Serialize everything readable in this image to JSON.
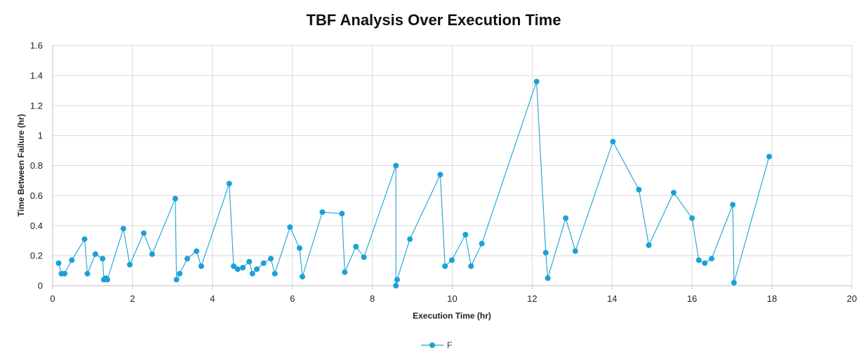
{
  "chart_data": {
    "type": "line",
    "title": "TBF Analysis Over Execution Time",
    "xlabel": "Execution Time (hr)",
    "ylabel": "Time Between Failure (hr)",
    "xlim": [
      0,
      20
    ],
    "ylim": [
      0,
      1.6
    ],
    "xticks": [
      0,
      2,
      4,
      6,
      8,
      10,
      12,
      14,
      16,
      18,
      20
    ],
    "yticks": [
      0,
      0.2,
      0.4,
      0.6,
      0.8,
      1,
      1.2,
      1.4,
      1.6
    ],
    "xtick_labels": [
      "0",
      "2",
      "4",
      "6",
      "8",
      "10",
      "12",
      "14",
      "16",
      "18",
      "20"
    ],
    "ytick_labels": [
      "0",
      "0.2",
      "0.4",
      "0.6",
      "0.8",
      "1",
      "1.2",
      "1.4",
      "1.6"
    ],
    "grid": true,
    "legend_position": "bottom",
    "series_color": "#1ba1d8",
    "series": [
      {
        "name": "F",
        "points": [
          [
            0.15,
            0.15
          ],
          [
            0.22,
            0.08
          ],
          [
            0.3,
            0.08
          ],
          [
            0.48,
            0.17
          ],
          [
            0.8,
            0.31
          ],
          [
            0.87,
            0.08
          ],
          [
            1.07,
            0.21
          ],
          [
            1.25,
            0.18
          ],
          [
            1.28,
            0.04
          ],
          [
            1.33,
            0.05
          ],
          [
            1.37,
            0.04
          ],
          [
            1.77,
            0.38
          ],
          [
            1.93,
            0.14
          ],
          [
            2.28,
            0.35
          ],
          [
            2.49,
            0.21
          ],
          [
            3.07,
            0.58
          ],
          [
            3.1,
            0.04
          ],
          [
            3.18,
            0.08
          ],
          [
            3.37,
            0.18
          ],
          [
            3.6,
            0.23
          ],
          [
            3.72,
            0.13
          ],
          [
            4.42,
            0.68
          ],
          [
            4.53,
            0.13
          ],
          [
            4.63,
            0.11
          ],
          [
            4.76,
            0.12
          ],
          [
            4.92,
            0.16
          ],
          [
            5.0,
            0.08
          ],
          [
            5.11,
            0.11
          ],
          [
            5.28,
            0.15
          ],
          [
            5.46,
            0.18
          ],
          [
            5.56,
            0.08
          ],
          [
            5.94,
            0.39
          ],
          [
            6.18,
            0.25
          ],
          [
            6.25,
            0.06
          ],
          [
            6.75,
            0.49
          ],
          [
            7.24,
            0.48
          ],
          [
            7.31,
            0.09
          ],
          [
            7.59,
            0.26
          ],
          [
            7.79,
            0.19
          ],
          [
            8.59,
            0.8
          ],
          [
            8.59,
            0.0
          ],
          [
            8.62,
            0.04
          ],
          [
            8.94,
            0.31
          ],
          [
            9.7,
            0.74
          ],
          [
            9.82,
            0.13
          ],
          [
            9.99,
            0.17
          ],
          [
            10.33,
            0.34
          ],
          [
            10.47,
            0.13
          ],
          [
            10.74,
            0.28
          ],
          [
            12.11,
            1.36
          ],
          [
            12.34,
            0.22
          ],
          [
            12.39,
            0.05
          ],
          [
            12.84,
            0.45
          ],
          [
            13.08,
            0.23
          ],
          [
            14.02,
            0.96
          ],
          [
            14.67,
            0.64
          ],
          [
            14.92,
            0.27
          ],
          [
            15.54,
            0.62
          ],
          [
            16.0,
            0.45
          ],
          [
            16.17,
            0.17
          ],
          [
            16.32,
            0.15
          ],
          [
            16.49,
            0.18
          ],
          [
            17.02,
            0.54
          ],
          [
            17.05,
            0.02
          ],
          [
            17.93,
            0.86
          ]
        ]
      }
    ]
  }
}
